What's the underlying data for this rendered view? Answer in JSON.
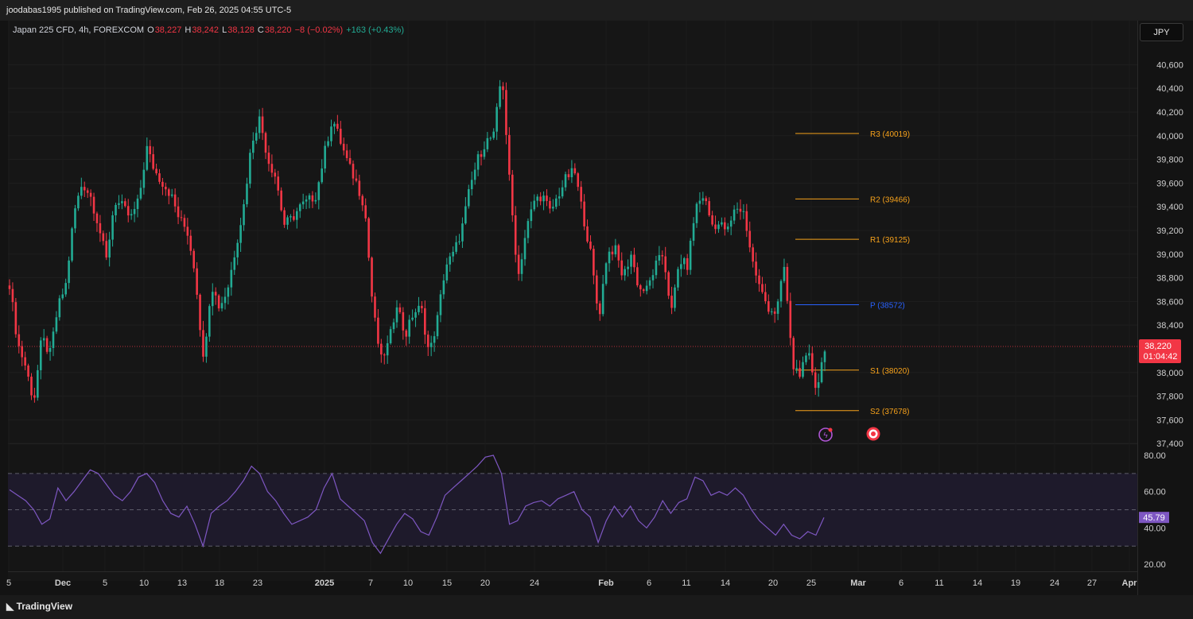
{
  "header": {
    "published": "joodabas1995 published on TradingView.com, Feb 26, 2025 04:55 UTC-5"
  },
  "legend": {
    "symbol": "Japan 225 CFD, 4h, FOREXCOM",
    "o_label": "O",
    "o_value": "38,227",
    "h_label": "H",
    "h_value": "38,242",
    "l_label": "L",
    "l_value": "38,128",
    "c_label": "C",
    "c_value": "38,220",
    "change": "−8 (−0.02%)",
    "extra": "+163 (+0.43%)"
  },
  "currency": "JPY",
  "footer": {
    "brand": "TradingView"
  },
  "colors": {
    "up": "#22ab94",
    "down": "#f23645",
    "pivot_r": "#f7a21b",
    "pivot_p": "#2962ff",
    "rsi": "#7e57c2",
    "price_tag": "#f23645"
  },
  "price_axis": {
    "ticks": [
      "40,600",
      "40,400",
      "40,200",
      "40,000",
      "39,800",
      "39,600",
      "39,400",
      "39,200",
      "39,000",
      "38,800",
      "38,600",
      "38,400",
      "38,000",
      "37,800",
      "37,600",
      "37,400"
    ]
  },
  "price_tag": {
    "price": "38,220",
    "countdown": "01:04:42"
  },
  "rsi_axis": {
    "ticks": [
      "80.00",
      "60.00",
      "40.00",
      "20.00"
    ],
    "current": "45.79"
  },
  "time_axis": [
    "5",
    "Dec",
    "5",
    "10",
    "13",
    "18",
    "23",
    "2025",
    "7",
    "10",
    "15",
    "20",
    "24",
    "Feb",
    "6",
    "11",
    "14",
    "20",
    "25",
    "Mar",
    "6",
    "11",
    "14",
    "19",
    "24",
    "27",
    "Apr"
  ],
  "pivots": [
    {
      "label": "R3 (40019)",
      "price": 40019
    },
    {
      "label": "R2 (39466)",
      "price": 39466
    },
    {
      "label": "R1 (39125)",
      "price": 39125
    },
    {
      "label": "P (38572)",
      "price": 38572
    },
    {
      "label": "S1 (38020)",
      "price": 38020
    },
    {
      "label": "S2 (37678)",
      "price": 37678
    }
  ],
  "chart_data": {
    "type": "candlestick",
    "title": "Japan 225 CFD, 4h, FOREXCOM",
    "ylim": [
      37400,
      40700
    ],
    "price_path": [
      38750,
      38250,
      38050,
      37750,
      38300,
      38150,
      38550,
      38750,
      39350,
      39600,
      39500,
      39250,
      38950,
      39450,
      39400,
      39300,
      39450,
      39900,
      39700,
      39600,
      39500,
      39300,
      39200,
      38850,
      38100,
      38750,
      38550,
      38700,
      39050,
      39400,
      39950,
      40150,
      39800,
      39650,
      39250,
      39300,
      39400,
      39450,
      39500,
      39850,
      40150,
      39950,
      39750,
      39600,
      39400,
      38550,
      38100,
      38250,
      38600,
      38300,
      38500,
      38550,
      38150,
      38450,
      38900,
      39000,
      39200,
      39550,
      39800,
      39950,
      40000,
      40550,
      39550,
      38800,
      39200,
      39450,
      39500,
      39350,
      39500,
      39650,
      39700,
      39350,
      39000,
      38450,
      39000,
      39050,
      38800,
      39000,
      38700,
      38700,
      38900,
      39000,
      38500,
      38950,
      38900,
      39400,
      39500,
      39250,
      39250,
      39200,
      39400,
      39350,
      38950,
      38700,
      38550,
      38500,
      38900,
      38050,
      38000,
      38150,
      37850,
      38220
    ],
    "rsi": [
      61,
      58,
      55,
      50,
      42,
      45,
      62,
      55,
      60,
      66,
      72,
      70,
      64,
      58,
      55,
      60,
      68,
      70,
      65,
      55,
      48,
      46,
      52,
      42,
      30,
      48,
      52,
      55,
      60,
      66,
      74,
      70,
      60,
      55,
      48,
      42,
      44,
      46,
      50,
      62,
      70,
      56,
      52,
      48,
      44,
      32,
      26,
      34,
      42,
      48,
      45,
      38,
      36,
      46,
      58,
      62,
      66,
      70,
      74,
      79,
      80,
      70,
      42,
      44,
      52,
      54,
      55,
      52,
      56,
      58,
      60,
      50,
      46,
      32,
      44,
      52,
      46,
      52,
      44,
      40,
      46,
      55,
      48,
      54,
      56,
      68,
      66,
      58,
      60,
      58,
      62,
      58,
      50,
      44,
      40,
      36,
      42,
      36,
      34,
      38,
      36,
      45.79
    ],
    "pivots": {
      "R3": 40019,
      "R2": 39466,
      "R1": 39125,
      "P": 38572,
      "S1": 38020,
      "S2": 37678
    },
    "last_price": 38220,
    "rsi_last": 45.79,
    "rsi_ylim": [
      20,
      80
    ]
  }
}
